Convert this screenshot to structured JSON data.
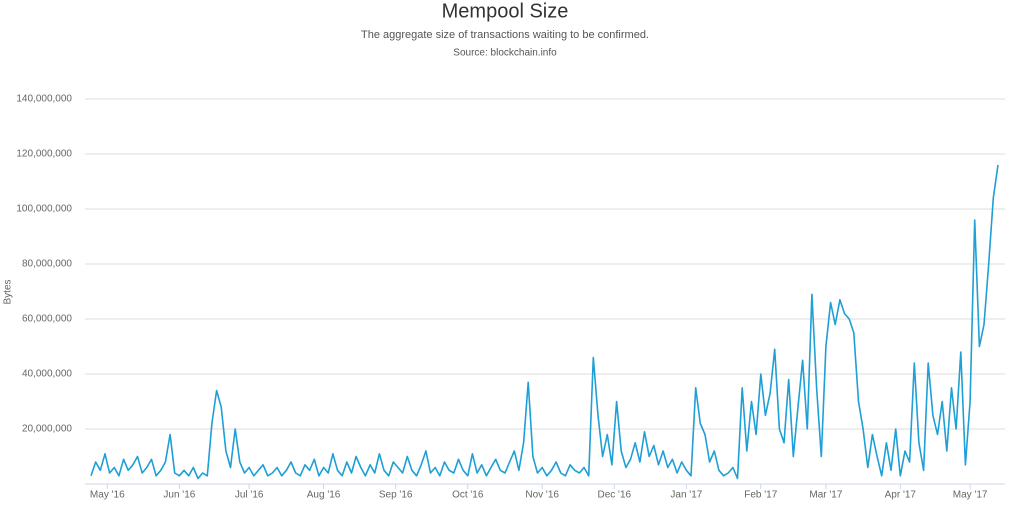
{
  "chart_data": {
    "type": "line",
    "title": "Mempool Size",
    "subtitle": "The aggregate size of transactions waiting to be confirmed.",
    "source": "Source: blockchain.info",
    "y_label": "Bytes",
    "color": "#1e9fd6",
    "grid": true,
    "xlim": [
      0,
      195
    ],
    "xticks": [
      {
        "value": 3.5,
        "label": "May '16"
      },
      {
        "value": 19,
        "label": "Jun '16"
      },
      {
        "value": 34,
        "label": "Jul '16"
      },
      {
        "value": 50,
        "label": "Aug '16"
      },
      {
        "value": 65.5,
        "label": "Sep '16"
      },
      {
        "value": 81,
        "label": "Oct '16"
      },
      {
        "value": 97,
        "label": "Nov '16"
      },
      {
        "value": 112.5,
        "label": "Dec '16"
      },
      {
        "value": 128,
        "label": "Jan '17"
      },
      {
        "value": 144,
        "label": "Feb '17"
      },
      {
        "value": 158,
        "label": "Mar '17"
      },
      {
        "value": 174,
        "label": "Apr '17"
      },
      {
        "value": 189,
        "label": "May '17"
      }
    ],
    "ylim": [
      0,
      140000000
    ],
    "yticks": [
      {
        "value": 20000000,
        "label": "20,000,000"
      },
      {
        "value": 40000000,
        "label": "40,000,000"
      },
      {
        "value": 60000000,
        "label": "60,000,000"
      },
      {
        "value": 80000000,
        "label": "80,000,000"
      },
      {
        "value": 100000000,
        "label": "100,000,000"
      },
      {
        "value": 120000000,
        "label": "120,000,000"
      },
      {
        "value": 140000000,
        "label": "140,000,000"
      }
    ],
    "values": [
      3000000,
      8000000,
      5000000,
      11000000,
      4000000,
      6000000,
      3000000,
      9000000,
      5000000,
      7000000,
      10000000,
      4000000,
      6000000,
      9000000,
      3000000,
      5000000,
      8000000,
      18000000,
      4000000,
      3000000,
      5000000,
      3000000,
      6000000,
      2000000,
      4000000,
      3000000,
      22000000,
      34000000,
      28000000,
      12000000,
      6000000,
      20000000,
      8000000,
      4000000,
      6000000,
      3000000,
      5000000,
      7000000,
      3000000,
      4000000,
      6000000,
      3000000,
      5000000,
      8000000,
      4000000,
      3000000,
      7000000,
      5000000,
      9000000,
      3000000,
      6000000,
      4000000,
      11000000,
      5000000,
      3000000,
      8000000,
      4000000,
      10000000,
      6000000,
      3000000,
      7000000,
      4000000,
      11000000,
      5000000,
      3000000,
      8000000,
      6000000,
      4000000,
      10000000,
      5000000,
      3000000,
      7000000,
      12000000,
      4000000,
      6000000,
      3000000,
      8000000,
      5000000,
      4000000,
      9000000,
      5000000,
      3000000,
      11000000,
      4000000,
      7000000,
      3000000,
      6000000,
      9000000,
      5000000,
      4000000,
      8000000,
      12000000,
      5000000,
      15000000,
      37000000,
      10000000,
      4000000,
      6000000,
      3000000,
      5000000,
      8000000,
      4000000,
      3000000,
      7000000,
      5000000,
      4000000,
      6000000,
      3000000,
      46000000,
      25000000,
      10000000,
      18000000,
      7000000,
      30000000,
      12000000,
      6000000,
      9000000,
      15000000,
      8000000,
      19000000,
      10000000,
      14000000,
      7000000,
      12000000,
      6000000,
      9000000,
      4000000,
      8000000,
      5000000,
      3000000,
      35000000,
      22000000,
      18000000,
      8000000,
      12000000,
      5000000,
      3000000,
      4000000,
      6000000,
      2000000,
      35000000,
      12000000,
      30000000,
      18000000,
      40000000,
      25000000,
      33000000,
      49000000,
      20000000,
      15000000,
      38000000,
      10000000,
      28000000,
      45000000,
      20000000,
      69000000,
      35000000,
      10000000,
      50000000,
      66000000,
      58000000,
      67000000,
      62000000,
      60000000,
      55000000,
      30000000,
      20000000,
      6000000,
      18000000,
      10000000,
      3000000,
      15000000,
      5000000,
      20000000,
      3000000,
      12000000,
      8000000,
      44000000,
      15000000,
      5000000,
      44000000,
      25000000,
      18000000,
      30000000,
      12000000,
      35000000,
      20000000,
      48000000,
      7000000,
      30000000,
      96000000,
      50000000,
      58000000,
      80000000,
      104000000,
      116000000
    ]
  }
}
